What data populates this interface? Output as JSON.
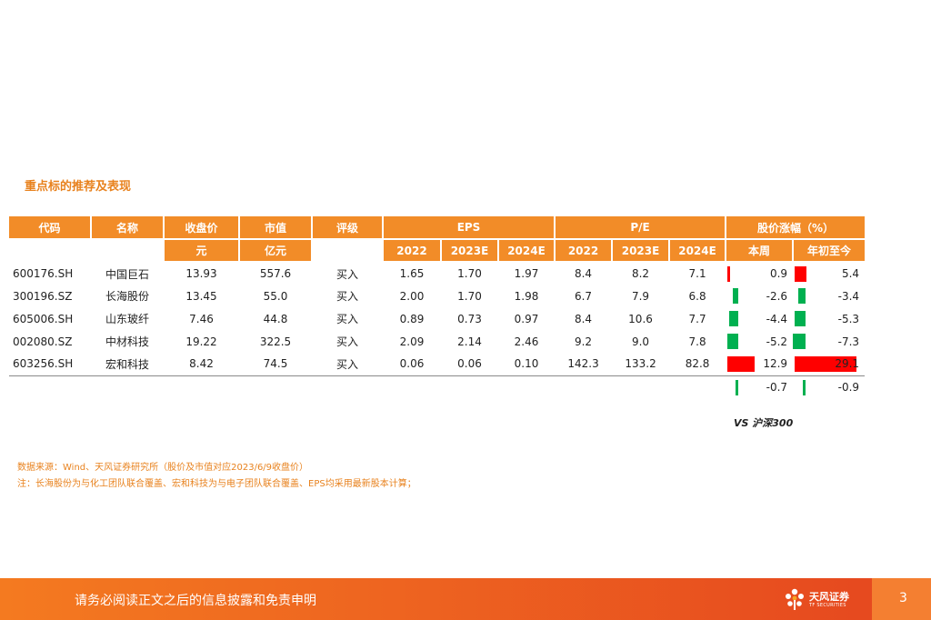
{
  "section_title": "重点标的推荐及表现",
  "table": {
    "headers": {
      "code": "代码",
      "name": "名称",
      "close": "收盘价",
      "mcap": "市值",
      "rating": "评级",
      "eps": "EPS",
      "pe": "P/E",
      "change": "股价涨幅（%）"
    },
    "units": {
      "close": "元",
      "mcap": "亿元"
    },
    "years": [
      "2022",
      "2023E",
      "2024E"
    ],
    "change_cols": [
      "本周",
      "年初至今"
    ],
    "rows": [
      {
        "code": "600176.SH",
        "name": "中国巨石",
        "close": "13.93",
        "mcap": "557.6",
        "rating": "买入",
        "eps": [
          "1.65",
          "1.70",
          "1.97"
        ],
        "pe": [
          "8.4",
          "8.2",
          "7.1"
        ],
        "week": 0.9,
        "ytd": 5.4,
        "week_label": "0.9",
        "ytd_label": "5.4"
      },
      {
        "code": "300196.SZ",
        "name": "长海股份",
        "close": "13.45",
        "mcap": "55.0",
        "rating": "买入",
        "eps": [
          "2.00",
          "1.70",
          "1.98"
        ],
        "pe": [
          "6.7",
          "7.9",
          "6.8"
        ],
        "week": -2.6,
        "ytd": -3.4,
        "week_label": "-2.6",
        "ytd_label": "-3.4"
      },
      {
        "code": "605006.SH",
        "name": "山东玻纤",
        "close": "7.46",
        "mcap": "44.8",
        "rating": "买入",
        "eps": [
          "0.89",
          "0.73",
          "0.97"
        ],
        "pe": [
          "8.4",
          "10.6",
          "7.7"
        ],
        "week": -4.4,
        "ytd": -5.3,
        "week_label": "-4.4",
        "ytd_label": "-5.3"
      },
      {
        "code": "002080.SZ",
        "name": "中材科技",
        "close": "19.22",
        "mcap": "322.5",
        "rating": "买入",
        "eps": [
          "2.09",
          "2.14",
          "2.46"
        ],
        "pe": [
          "9.2",
          "9.0",
          "7.8"
        ],
        "week": -5.2,
        "ytd": -7.3,
        "week_label": "-5.2",
        "ytd_label": "-7.3"
      },
      {
        "code": "603256.SH",
        "name": "宏和科技",
        "close": "8.42",
        "mcap": "74.5",
        "rating": "买入",
        "eps": [
          "0.06",
          "0.06",
          "0.10"
        ],
        "pe": [
          "142.3",
          "133.2",
          "82.8"
        ],
        "week": 12.9,
        "ytd": 29.1,
        "week_label": "12.9",
        "ytd_label": "29.1"
      }
    ],
    "benchmark": {
      "label": "VS 沪深300",
      "week": -0.7,
      "ytd": -0.9,
      "week_label": "-0.7",
      "ytd_label": "-0.9"
    }
  },
  "colors": {
    "header_bg": "#f28c28",
    "positive": "#ff0000",
    "negative": "#00b050",
    "accent_text": "#e8821e"
  },
  "notes": [
    "数据来源：Wind、天风证券研究所（股价及市值对应2023/6/9收盘价）",
    "注：长海股份为与化工团队联合覆盖、宏和科技为与电子团队联合覆盖、EPS均采用最新股本计算；"
  ],
  "footer": {
    "disclaimer": "请务必阅读正文之后的信息披露和免责申明",
    "logo_name": "天风证券",
    "logo_sub": "TF SECURITIES",
    "logo_icon": "flower-logo-icon",
    "page": "3"
  }
}
